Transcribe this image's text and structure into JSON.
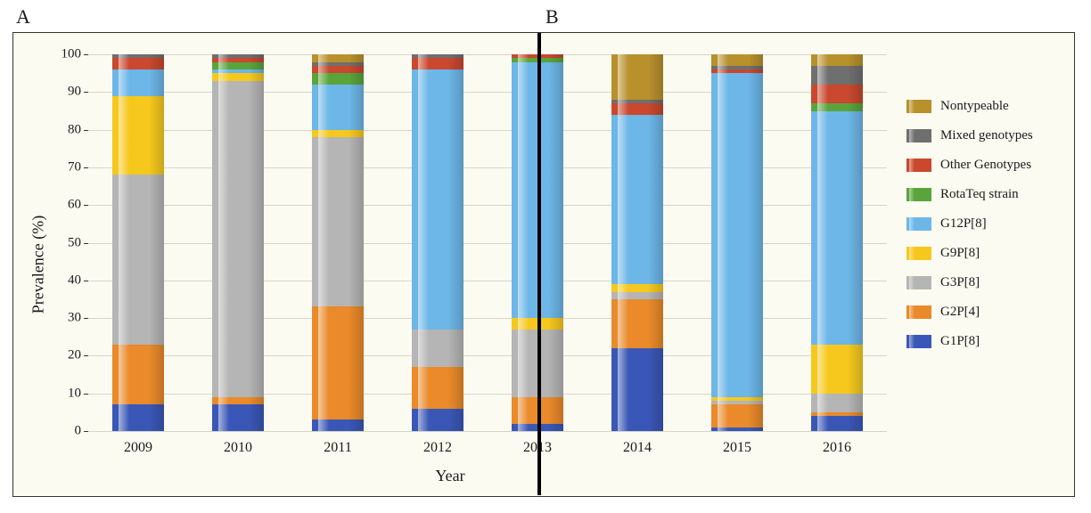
{
  "panels": {
    "A": "A",
    "B": "B"
  },
  "y_axis": {
    "label": "Prevalence (%)",
    "min": 0,
    "max": 100,
    "step": 10,
    "label_fontsize": 18,
    "tick_fontsize": 15
  },
  "x_axis": {
    "label": "Year",
    "label_fontsize": 18,
    "tick_fontsize": 16
  },
  "divider_after_index": 4,
  "grid_color": "#d6d6c7",
  "background_color": "#fbfbf2",
  "bar_width_pct": 52,
  "legend_order": [
    "nontypeable",
    "mixed",
    "other",
    "rotateq",
    "g12p8",
    "g9p8",
    "g3p8",
    "g2p4",
    "g1p8"
  ],
  "categories": {
    "g1p8": {
      "label": "G1P[8]",
      "color": "#3a57b7"
    },
    "g2p4": {
      "label": "G2P[4]",
      "color": "#ea8a2a"
    },
    "g3p8": {
      "label": "G3P[8]",
      "color": "#b5b5b5"
    },
    "g9p8": {
      "label": "G9P[8]",
      "color": "#f6c81d"
    },
    "g12p8": {
      "label": "G12P[8]",
      "color": "#6db6e8"
    },
    "rotateq": {
      "label": "RotaTeq strain",
      "color": "#5aa43c"
    },
    "other": {
      "label": "Other Genotypes",
      "color": "#c9482e"
    },
    "mixed": {
      "label": "Mixed genotypes",
      "color": "#6f6f6f"
    },
    "nontypeable": {
      "label": "Nontypeable",
      "color": "#b8912c"
    }
  },
  "stack_order": [
    "g1p8",
    "g2p4",
    "g3p8",
    "g9p8",
    "g12p8",
    "rotateq",
    "other",
    "mixed",
    "nontypeable"
  ],
  "years": [
    {
      "year": "2009",
      "values": {
        "g1p8": 7,
        "g2p4": 16,
        "g3p8": 45,
        "g9p8": 21,
        "g12p8": 7,
        "rotateq": 0,
        "other": 3,
        "mixed": 1,
        "nontypeable": 0
      }
    },
    {
      "year": "2010",
      "values": {
        "g1p8": 7,
        "g2p4": 2,
        "g3p8": 84,
        "g9p8": 2,
        "g12p8": 1,
        "rotateq": 2,
        "other": 1,
        "mixed": 1,
        "nontypeable": 0
      }
    },
    {
      "year": "2011",
      "values": {
        "g1p8": 3,
        "g2p4": 30,
        "g3p8": 45,
        "g9p8": 2,
        "g12p8": 12,
        "rotateq": 3,
        "other": 2,
        "mixed": 1,
        "nontypeable": 2
      }
    },
    {
      "year": "2012",
      "values": {
        "g1p8": 6,
        "g2p4": 11,
        "g3p8": 10,
        "g9p8": 0,
        "g12p8": 69,
        "rotateq": 0,
        "other": 3,
        "mixed": 1,
        "nontypeable": 0
      }
    },
    {
      "year": "2013",
      "values": {
        "g1p8": 2,
        "g2p4": 7,
        "g3p8": 18,
        "g9p8": 3,
        "g12p8": 68,
        "rotateq": 1,
        "other": 1,
        "mixed": 0,
        "nontypeable": 0
      }
    },
    {
      "year": "2014",
      "values": {
        "g1p8": 22,
        "g2p4": 13,
        "g3p8": 2,
        "g9p8": 2,
        "g12p8": 45,
        "rotateq": 0,
        "other": 3,
        "mixed": 1,
        "nontypeable": 12
      }
    },
    {
      "year": "2015",
      "values": {
        "g1p8": 1,
        "g2p4": 6,
        "g3p8": 1,
        "g9p8": 1,
        "g12p8": 86,
        "rotateq": 0,
        "other": 1,
        "mixed": 1,
        "nontypeable": 3
      }
    },
    {
      "year": "2016",
      "values": {
        "g1p8": 4,
        "g2p4": 1,
        "g3p8": 5,
        "g9p8": 13,
        "g12p8": 62,
        "rotateq": 2,
        "other": 5,
        "mixed": 5,
        "nontypeable": 3
      }
    }
  ]
}
